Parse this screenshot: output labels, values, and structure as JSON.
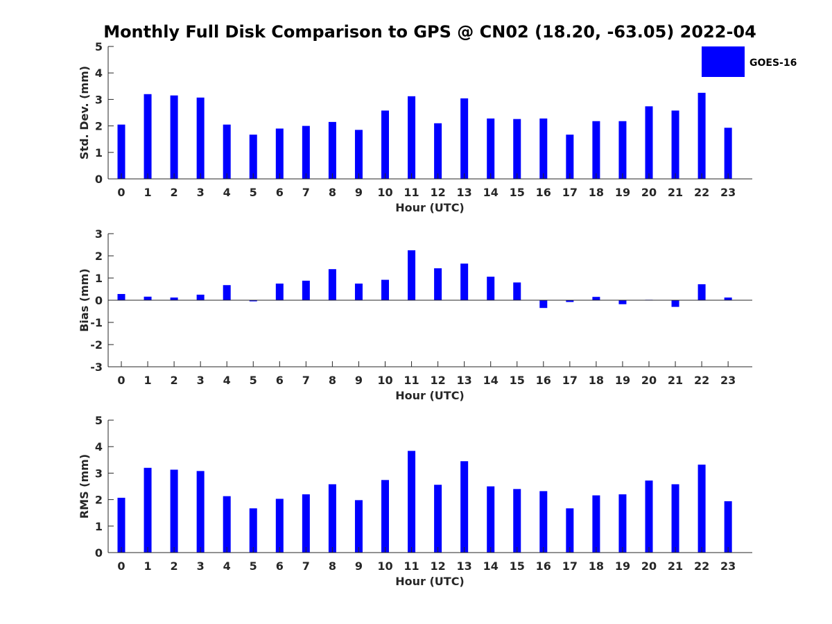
{
  "chart_data": {
    "type": "bar",
    "title": "Monthly Full Disk Comparison to GPS @ CN02 (18.20, -63.05) 2022-04",
    "categories": [
      "0",
      "1",
      "2",
      "3",
      "4",
      "5",
      "6",
      "7",
      "8",
      "9",
      "10",
      "11",
      "12",
      "13",
      "14",
      "15",
      "16",
      "17",
      "18",
      "19",
      "20",
      "21",
      "22",
      "23"
    ],
    "bar_color": "#0000ff",
    "legend": {
      "label": "GOES-16",
      "placement": "top-right"
    },
    "panels": [
      {
        "id": "std",
        "ylabel": "Std. Dev. (mm)",
        "xlabel": "Hour (UTC)",
        "ylim": [
          0,
          5
        ],
        "yticks": [
          0,
          1,
          2,
          3,
          4,
          5
        ],
        "series": [
          {
            "name": "GOES-16",
            "values": [
              2.05,
              3.2,
              3.15,
              3.07,
              2.05,
              1.67,
              1.9,
              2.0,
              2.15,
              1.85,
              2.58,
              3.12,
              2.1,
              3.04,
              2.28,
              2.26,
              2.28,
              1.67,
              2.18,
              2.18,
              2.74,
              2.58,
              3.25,
              1.93
            ]
          }
        ]
      },
      {
        "id": "bias",
        "ylabel": "Bias (mm)",
        "xlabel": "Hour (UTC)",
        "ylim": [
          -3,
          3
        ],
        "yticks": [
          -3,
          -2,
          -1,
          0,
          1,
          2,
          3
        ],
        "series": [
          {
            "name": "GOES-16",
            "values": [
              0.28,
              0.16,
              0.12,
              0.25,
              0.68,
              -0.05,
              0.75,
              0.88,
              1.4,
              0.75,
              0.92,
              2.25,
              1.44,
              1.65,
              1.06,
              0.8,
              -0.35,
              -0.08,
              0.15,
              -0.18,
              0.02,
              -0.3,
              0.72,
              0.12
            ]
          }
        ]
      },
      {
        "id": "rms",
        "ylabel": "RMS (mm)",
        "xlabel": "Hour (UTC)",
        "ylim": [
          0,
          5
        ],
        "yticks": [
          0,
          1,
          2,
          3,
          4,
          5
        ],
        "series": [
          {
            "name": "GOES-16",
            "values": [
              2.07,
              3.2,
              3.13,
              3.08,
              2.13,
              1.67,
              2.03,
              2.2,
              2.58,
              1.98,
              2.74,
              3.84,
              2.56,
              3.45,
              2.5,
              2.4,
              2.32,
              1.67,
              2.16,
              2.2,
              2.72,
              2.58,
              3.32,
              1.94
            ]
          }
        ]
      }
    ]
  }
}
